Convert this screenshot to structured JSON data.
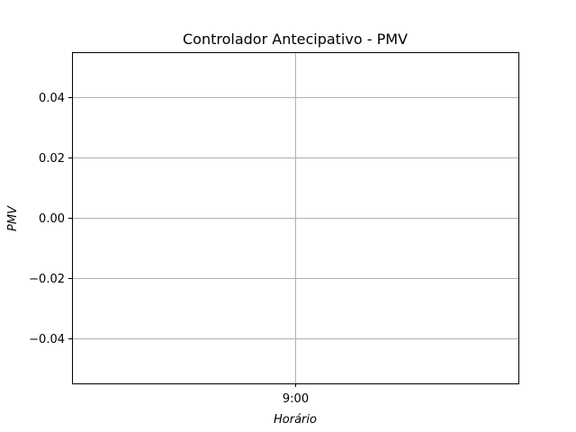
{
  "chart_data": {
    "type": "line",
    "title": "Controlador Antecipativo - PMV",
    "xlabel": "Horário",
    "ylabel": "PMV",
    "x_ticks": [
      "9:00"
    ],
    "y_ticks": [
      0.04,
      0.02,
      0.0,
      -0.02,
      -0.04
    ],
    "y_tick_labels": [
      "0.04",
      "0.02",
      "0.00",
      "−0.02",
      "−0.04"
    ],
    "ylim": [
      -0.055,
      0.055
    ],
    "grid": true,
    "series": []
  }
}
